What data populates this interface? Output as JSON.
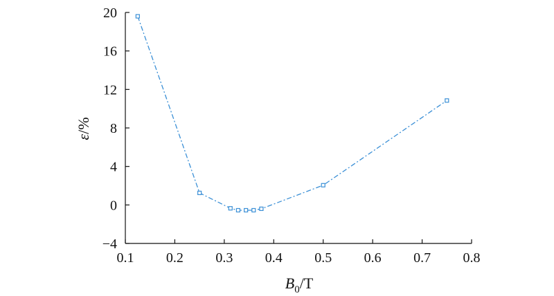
{
  "chart_data": {
    "type": "line",
    "title": "",
    "xlabel": {
      "symbol": "B",
      "subscript": "0",
      "unit": "/T"
    },
    "ylabel": {
      "symbol": "ε",
      "unit": "/%"
    },
    "xlim": [
      0.1,
      0.8
    ],
    "ylim": [
      -4,
      20
    ],
    "xticks": [
      0.1,
      0.2,
      0.3,
      0.4,
      0.5,
      0.6,
      0.7,
      0.8
    ],
    "xtick_labels": [
      "0.1",
      "0.2",
      "0.3",
      "0.4",
      "0.5",
      "0.6",
      "0.7",
      "0.8"
    ],
    "yticks": [
      -4,
      0,
      4,
      8,
      12,
      16,
      20
    ],
    "ytick_labels": [
      "−4",
      "0",
      "4",
      "8",
      "12",
      "16",
      "20"
    ],
    "grid": false,
    "series": [
      {
        "color": "#3a8fd6",
        "marker": "square",
        "x": [
          0.125,
          0.25,
          0.3125,
          0.3281,
          0.3438,
          0.3594,
          0.375,
          0.5,
          0.75
        ],
        "y": [
          19.6,
          1.25,
          -0.35,
          -0.55,
          -0.55,
          -0.55,
          -0.4,
          2.05,
          10.85
        ]
      }
    ]
  }
}
